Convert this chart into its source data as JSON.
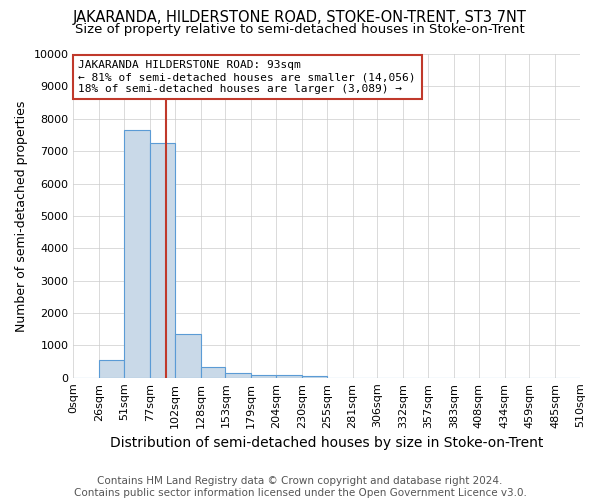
{
  "title": "JAKARANDA, HILDERSTONE ROAD, STOKE-ON-TRENT, ST3 7NT",
  "subtitle": "Size of property relative to semi-detached houses in Stoke-on-Trent",
  "xlabel": "Distribution of semi-detached houses by size in Stoke-on-Trent",
  "ylabel": "Number of semi-detached properties",
  "footer1": "Contains HM Land Registry data © Crown copyright and database right 2024.",
  "footer2": "Contains public sector information licensed under the Open Government Licence v3.0.",
  "bin_edges": [
    0,
    26,
    51,
    77,
    102,
    128,
    153,
    179,
    204,
    230,
    255,
    281,
    306,
    332,
    357,
    383,
    408,
    434,
    459,
    485,
    510
  ],
  "bin_counts": [
    0,
    550,
    7650,
    7250,
    1350,
    330,
    160,
    100,
    80,
    50,
    0,
    0,
    0,
    0,
    0,
    0,
    0,
    0,
    0,
    0
  ],
  "bar_facecolor": "#c9d9e8",
  "bar_edgecolor": "#5b9bd5",
  "property_size": 93,
  "vline_color": "#c0392b",
  "annotation_line1": "JAKARANDA HILDERSTONE ROAD: 93sqm",
  "annotation_line2": "← 81% of semi-detached houses are smaller (14,056)",
  "annotation_line3": "18% of semi-detached houses are larger (3,089) →",
  "annotation_box_edgecolor": "#c0392b",
  "annotation_box_facecolor": "white",
  "ylim": [
    0,
    10000
  ],
  "yticks": [
    0,
    1000,
    2000,
    3000,
    4000,
    5000,
    6000,
    7000,
    8000,
    9000,
    10000
  ],
  "background_color": "white",
  "grid_color": "#cccccc",
  "title_fontsize": 10.5,
  "subtitle_fontsize": 9.5,
  "xlabel_fontsize": 10,
  "ylabel_fontsize": 9,
  "tick_fontsize": 8,
  "annotation_fontsize": 8,
  "footer_fontsize": 7.5
}
